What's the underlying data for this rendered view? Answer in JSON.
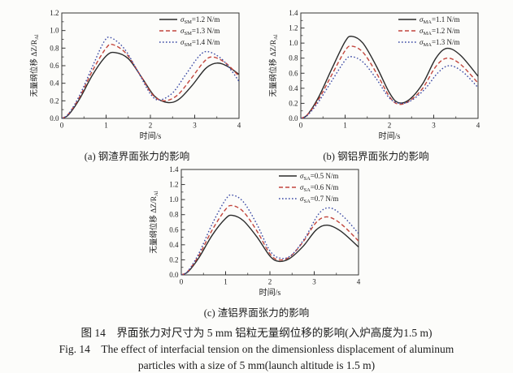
{
  "page": {
    "background": "#fcfcfa"
  },
  "colors": {
    "black": "#2b2b2b",
    "red": "#c2453c",
    "blue": "#3a49a4",
    "axis": "#333333"
  },
  "caption": {
    "zh": "图 14　界面张力对尺寸为 5 mm 铝粒无量纲位移的影响(入炉高度为1.5 m)",
    "en_line1": "Fig. 14　The effect of interfacial tension on the dimensionless displacement of aluminum",
    "en_line2": "particles with a size of 5 mm(launch altitude is 1.5 m)"
  },
  "chart_data": [
    {
      "type": "line",
      "id": "a",
      "subtitle": "(a) 钢渣界面张力的影响",
      "xlabel": "时间/s",
      "ylabel": {
        "text": "无量纲位移 ΔZ/R",
        "sub": "Al"
      },
      "xlim": [
        0,
        4
      ],
      "ylim": [
        0,
        1.2
      ],
      "xticks": [
        0,
        1,
        2,
        3,
        4
      ],
      "yticks": [
        0,
        0.2,
        0.4,
        0.6,
        0.8,
        1.0,
        1.2
      ],
      "grid": false,
      "legend_position": "top-right",
      "series": [
        {
          "legend": {
            "symbol": "σ",
            "sub": "SM",
            "value": "=1.2 N/m"
          },
          "style": "solid",
          "color": "black",
          "points": [
            [
              0,
              0
            ],
            [
              0.15,
              0.04
            ],
            [
              0.4,
              0.22
            ],
            [
              0.7,
              0.5
            ],
            [
              1.0,
              0.71
            ],
            [
              1.2,
              0.75
            ],
            [
              1.5,
              0.68
            ],
            [
              1.8,
              0.47
            ],
            [
              2.1,
              0.25
            ],
            [
              2.4,
              0.18
            ],
            [
              2.65,
              0.22
            ],
            [
              2.95,
              0.38
            ],
            [
              3.25,
              0.57
            ],
            [
              3.5,
              0.63
            ],
            [
              3.75,
              0.59
            ],
            [
              4.0,
              0.5
            ]
          ]
        },
        {
          "legend": {
            "symbol": "σ",
            "sub": "SM",
            "value": "=1.3 N/m"
          },
          "style": "dashed",
          "color": "red",
          "points": [
            [
              0,
              0
            ],
            [
              0.15,
              0.05
            ],
            [
              0.4,
              0.24
            ],
            [
              0.7,
              0.55
            ],
            [
              1.0,
              0.8
            ],
            [
              1.15,
              0.84
            ],
            [
              1.45,
              0.74
            ],
            [
              1.75,
              0.51
            ],
            [
              2.05,
              0.27
            ],
            [
              2.3,
              0.2
            ],
            [
              2.6,
              0.26
            ],
            [
              2.9,
              0.44
            ],
            [
              3.2,
              0.64
            ],
            [
              3.4,
              0.7
            ],
            [
              3.7,
              0.63
            ],
            [
              4.0,
              0.48
            ]
          ]
        },
        {
          "legend": {
            "symbol": "σ",
            "sub": "SM",
            "value": "=1.4 N/m"
          },
          "style": "dotted",
          "color": "blue",
          "points": [
            [
              0,
              0
            ],
            [
              0.15,
              0.05
            ],
            [
              0.4,
              0.26
            ],
            [
              0.7,
              0.6
            ],
            [
              0.95,
              0.87
            ],
            [
              1.1,
              0.92
            ],
            [
              1.4,
              0.8
            ],
            [
              1.7,
              0.55
            ],
            [
              2.0,
              0.28
            ],
            [
              2.2,
              0.21
            ],
            [
              2.5,
              0.29
            ],
            [
              2.8,
              0.5
            ],
            [
              3.1,
              0.71
            ],
            [
              3.3,
              0.76
            ],
            [
              3.6,
              0.68
            ],
            [
              3.85,
              0.53
            ],
            [
              4.0,
              0.42
            ]
          ]
        }
      ]
    },
    {
      "type": "line",
      "id": "b",
      "subtitle": "(b) 钢铝界面张力的影响",
      "xlabel": "时间/s",
      "ylabel": {
        "text": "无量纲位移 ΔZ/R",
        "sub": "Al"
      },
      "xlim": [
        0,
        4
      ],
      "ylim": [
        0,
        1.4
      ],
      "xticks": [
        0,
        1,
        2,
        3,
        4
      ],
      "yticks": [
        0,
        0.2,
        0.4,
        0.6,
        0.8,
        1.0,
        1.2,
        1.4
      ],
      "grid": false,
      "legend_position": "top-right",
      "series": [
        {
          "legend": {
            "symbol": "σ",
            "sub": "MA",
            "value": "=1.1 N/m"
          },
          "style": "solid",
          "color": "black",
          "points": [
            [
              0,
              0
            ],
            [
              0.15,
              0.05
            ],
            [
              0.4,
              0.28
            ],
            [
              0.7,
              0.66
            ],
            [
              1.0,
              1.02
            ],
            [
              1.15,
              1.09
            ],
            [
              1.4,
              1.0
            ],
            [
              1.7,
              0.7
            ],
            [
              2.0,
              0.34
            ],
            [
              2.2,
              0.21
            ],
            [
              2.45,
              0.25
            ],
            [
              2.75,
              0.46
            ],
            [
              3.05,
              0.8
            ],
            [
              3.3,
              0.93
            ],
            [
              3.6,
              0.84
            ],
            [
              4.0,
              0.56
            ]
          ]
        },
        {
          "legend": {
            "symbol": "σ",
            "sub": "MA",
            "value": "=1.2 N/m"
          },
          "style": "dashed",
          "color": "red",
          "points": [
            [
              0,
              0
            ],
            [
              0.15,
              0.05
            ],
            [
              0.4,
              0.25
            ],
            [
              0.7,
              0.58
            ],
            [
              1.0,
              0.9
            ],
            [
              1.15,
              0.96
            ],
            [
              1.4,
              0.88
            ],
            [
              1.7,
              0.61
            ],
            [
              2.0,
              0.29
            ],
            [
              2.2,
              0.19
            ],
            [
              2.45,
              0.23
            ],
            [
              2.75,
              0.4
            ],
            [
              3.05,
              0.69
            ],
            [
              3.3,
              0.8
            ],
            [
              3.6,
              0.72
            ],
            [
              4.0,
              0.47
            ]
          ]
        },
        {
          "legend": {
            "symbol": "σ",
            "sub": "MA",
            "value": "=1.3 N/m"
          },
          "style": "dotted",
          "color": "blue",
          "points": [
            [
              0,
              0
            ],
            [
              0.15,
              0.04
            ],
            [
              0.4,
              0.22
            ],
            [
              0.7,
              0.5
            ],
            [
              1.0,
              0.77
            ],
            [
              1.15,
              0.82
            ],
            [
              1.4,
              0.75
            ],
            [
              1.7,
              0.53
            ],
            [
              2.0,
              0.27
            ],
            [
              2.25,
              0.2
            ],
            [
              2.5,
              0.24
            ],
            [
              2.8,
              0.39
            ],
            [
              3.1,
              0.61
            ],
            [
              3.35,
              0.7
            ],
            [
              3.65,
              0.62
            ],
            [
              4.0,
              0.41
            ]
          ]
        }
      ]
    },
    {
      "type": "line",
      "id": "c",
      "subtitle": "(c) 渣铝界面张力的影响",
      "xlabel": "时间/s",
      "ylabel": {
        "text": "无量纲位移 ΔZ/R",
        "sub": "Al"
      },
      "xlim": [
        0,
        4
      ],
      "ylim": [
        0,
        1.4
      ],
      "xticks": [
        0,
        1,
        2,
        3,
        4
      ],
      "yticks": [
        0,
        0.2,
        0.4,
        0.6,
        0.8,
        1.0,
        1.2,
        1.4
      ],
      "grid": false,
      "legend_position": "top-right",
      "series": [
        {
          "legend": {
            "symbol": "σ",
            "sub": "SA",
            "value": "=0.5 N/m"
          },
          "style": "solid",
          "color": "black",
          "points": [
            [
              0,
              0
            ],
            [
              0.15,
              0.04
            ],
            [
              0.4,
              0.23
            ],
            [
              0.7,
              0.53
            ],
            [
              1.0,
              0.75
            ],
            [
              1.15,
              0.79
            ],
            [
              1.4,
              0.72
            ],
            [
              1.7,
              0.51
            ],
            [
              2.0,
              0.25
            ],
            [
              2.2,
              0.18
            ],
            [
              2.45,
              0.22
            ],
            [
              2.75,
              0.38
            ],
            [
              3.05,
              0.6
            ],
            [
              3.3,
              0.66
            ],
            [
              3.6,
              0.58
            ],
            [
              4.0,
              0.37
            ]
          ]
        },
        {
          "legend": {
            "symbol": "σ",
            "sub": "SA",
            "value": "=0.6 N/m"
          },
          "style": "dashed",
          "color": "red",
          "points": [
            [
              0,
              0
            ],
            [
              0.15,
              0.05
            ],
            [
              0.4,
              0.26
            ],
            [
              0.7,
              0.6
            ],
            [
              1.0,
              0.87
            ],
            [
              1.15,
              0.92
            ],
            [
              1.4,
              0.84
            ],
            [
              1.7,
              0.59
            ],
            [
              2.0,
              0.28
            ],
            [
              2.2,
              0.2
            ],
            [
              2.45,
              0.24
            ],
            [
              2.75,
              0.44
            ],
            [
              3.05,
              0.7
            ],
            [
              3.3,
              0.77
            ],
            [
              3.6,
              0.68
            ],
            [
              4.0,
              0.45
            ]
          ]
        },
        {
          "legend": {
            "symbol": "σ",
            "sub": "SA",
            "value": "=0.7 N/m"
          },
          "style": "dotted",
          "color": "blue",
          "points": [
            [
              0,
              0
            ],
            [
              0.15,
              0.05
            ],
            [
              0.4,
              0.29
            ],
            [
              0.7,
              0.68
            ],
            [
              1.0,
              1.0
            ],
            [
              1.15,
              1.06
            ],
            [
              1.4,
              0.97
            ],
            [
              1.7,
              0.68
            ],
            [
              2.0,
              0.32
            ],
            [
              2.25,
              0.22
            ],
            [
              2.5,
              0.27
            ],
            [
              2.8,
              0.5
            ],
            [
              3.1,
              0.81
            ],
            [
              3.35,
              0.89
            ],
            [
              3.65,
              0.78
            ],
            [
              4.0,
              0.55
            ]
          ]
        }
      ]
    }
  ]
}
